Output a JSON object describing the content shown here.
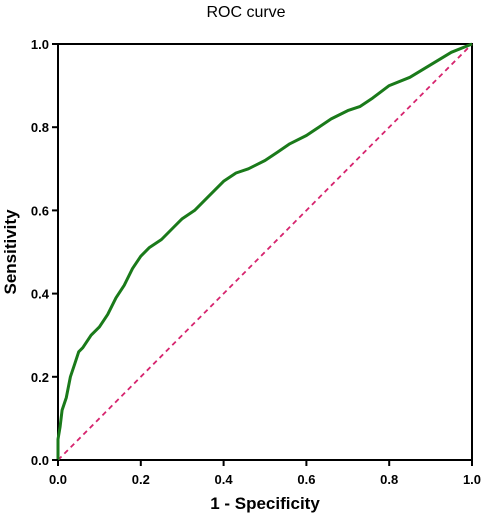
{
  "chart_data": {
    "type": "line",
    "title": "ROC curve",
    "xlabel": "1 - Specificity",
    "ylabel": "Sensitivity",
    "xlim": [
      0,
      1
    ],
    "ylim": [
      0,
      1
    ],
    "x_ticks": [
      "0.0",
      "0.2",
      "0.4",
      "0.6",
      "0.8",
      "1.0"
    ],
    "y_ticks": [
      "0.0",
      "0.2",
      "0.4",
      "0.6",
      "0.8",
      "1.0"
    ],
    "grid": false,
    "legend": "none",
    "series": [
      {
        "style": "solid",
        "color": "#1a7a1a",
        "x": [
          0,
          0,
          0.005,
          0.01,
          0.02,
          0.03,
          0.04,
          0.05,
          0.06,
          0.08,
          0.1,
          0.12,
          0.14,
          0.16,
          0.18,
          0.2,
          0.22,
          0.25,
          0.28,
          0.3,
          0.33,
          0.36,
          0.4,
          0.43,
          0.46,
          0.5,
          0.53,
          0.56,
          0.6,
          0.63,
          0.66,
          0.7,
          0.73,
          0.76,
          0.8,
          0.85,
          0.9,
          0.95,
          1.0
        ],
        "y": [
          0,
          0.05,
          0.08,
          0.12,
          0.15,
          0.2,
          0.23,
          0.26,
          0.27,
          0.3,
          0.32,
          0.35,
          0.39,
          0.42,
          0.46,
          0.49,
          0.51,
          0.53,
          0.56,
          0.58,
          0.6,
          0.63,
          0.67,
          0.69,
          0.7,
          0.72,
          0.74,
          0.76,
          0.78,
          0.8,
          0.82,
          0.84,
          0.85,
          0.87,
          0.9,
          0.92,
          0.95,
          0.98,
          1.0
        ]
      },
      {
        "style": "dashed",
        "color": "#d6246e",
        "x": [
          0,
          1
        ],
        "y": [
          0,
          1
        ]
      }
    ]
  }
}
